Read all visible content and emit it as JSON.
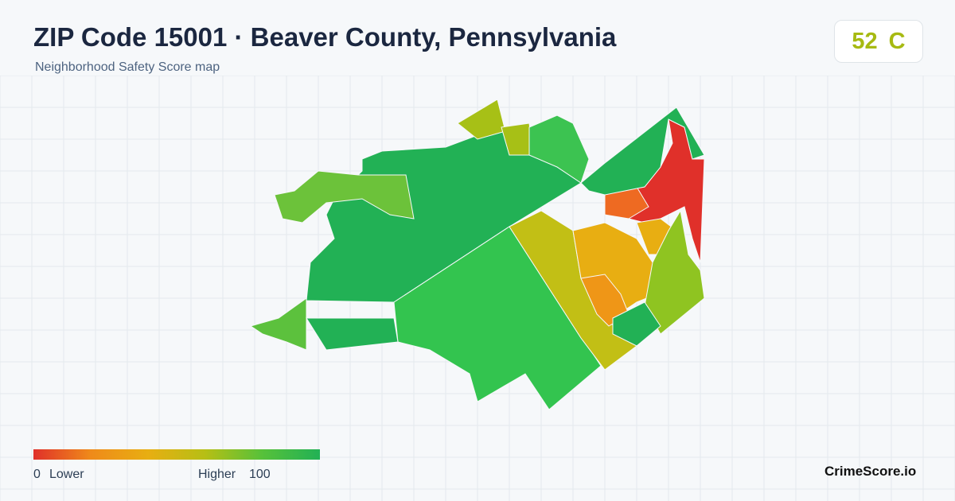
{
  "header": {
    "title": "ZIP Code 15001 · Beaver County, Pennsylvania",
    "subtitle": "Neighborhood Safety Score map",
    "score": 52,
    "grade": "C"
  },
  "legend": {
    "min": 0,
    "min_label": "Lower",
    "max_label": "Higher",
    "max": 100
  },
  "footer": {
    "brand": "CrimeScore.io"
  }
}
